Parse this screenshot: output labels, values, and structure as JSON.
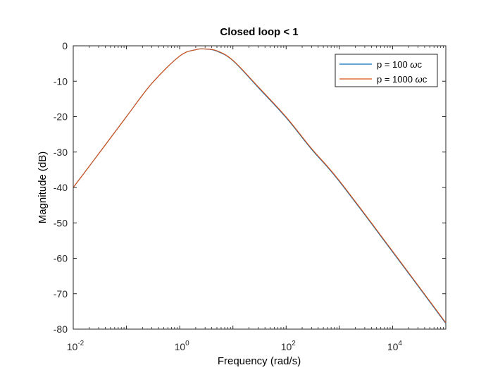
{
  "chart_data": {
    "type": "line",
    "title": "Closed loop < 1",
    "xlabel": "Frequency  (rad/s)",
    "ylabel": "Magnitude (dB)",
    "xscale": "log",
    "xlim": [
      0.01,
      100000
    ],
    "ylim": [
      -80,
      0
    ],
    "grid": false,
    "legend_position": "top-right",
    "x_ticks": [
      {
        "base": "10",
        "exp": "-2"
      },
      {
        "base": "10",
        "exp": "0"
      },
      {
        "base": "10",
        "exp": "2"
      },
      {
        "base": "10",
        "exp": "4"
      }
    ],
    "y_ticks": [
      "0",
      "-10",
      "-20",
      "-30",
      "-40",
      "-50",
      "-60",
      "-70",
      "-80"
    ],
    "x": [
      0.01,
      0.03,
      0.1,
      0.3,
      1,
      2,
      3,
      5,
      10,
      30,
      100,
      300,
      1000,
      10000,
      100000
    ],
    "series": [
      {
        "name": "p = 100 ωc",
        "legend_label": {
          "prefix": "p = 100 ",
          "symbol": "ω",
          "suffix": "c"
        },
        "color": "#0072BD",
        "values": [
          -40,
          -30.5,
          -20,
          -10.6,
          -2.9,
          -1.1,
          -0.9,
          -1.5,
          -4.2,
          -11.8,
          -20.3,
          -29.2,
          -38.3,
          -58.2,
          -78.4
        ]
      },
      {
        "name": "p = 1000 ωc",
        "legend_label": {
          "prefix": "p = 1000 ",
          "symbol": "ω",
          "suffix": "c"
        },
        "color": "#D95319",
        "values": [
          -40,
          -30.5,
          -20,
          -10.6,
          -2.9,
          -1.1,
          -0.9,
          -1.4,
          -4.1,
          -11.6,
          -20.1,
          -29.0,
          -38.1,
          -58.0,
          -78.2
        ]
      }
    ]
  }
}
